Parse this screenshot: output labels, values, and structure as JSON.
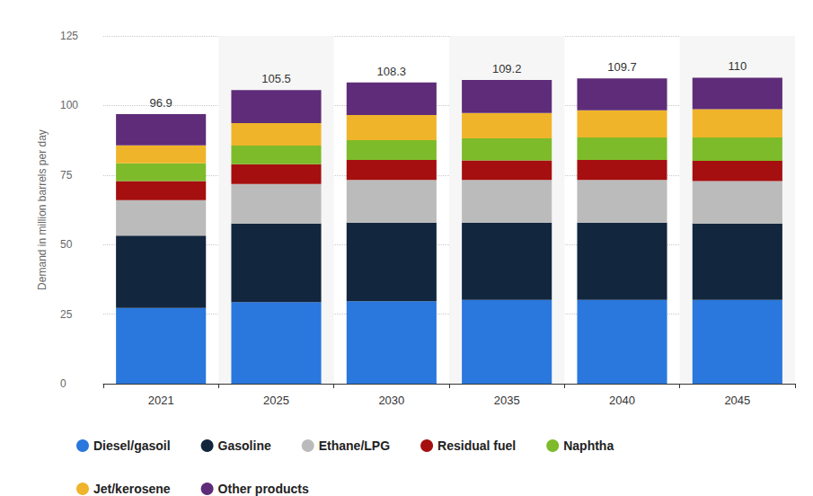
{
  "chart_data": {
    "type": "bar",
    "stacked": true,
    "grid": true,
    "legend": "bottom",
    "y_label": "Demand in million barrels per day",
    "categories": [
      "2021",
      "2025",
      "2030",
      "2035",
      "2040",
      "2045"
    ],
    "totals": [
      96.9,
      105.5,
      108.3,
      109.2,
      109.7,
      110
    ],
    "ylim": [
      0,
      125
    ],
    "yticks": [
      0,
      25,
      50,
      75,
      100,
      125
    ],
    "series": [
      {
        "name": "Diesel/gasoil",
        "color": "#2a77dd",
        "values": [
          27.2,
          29.3,
          29.6,
          30.1,
          30.1,
          30.1
        ]
      },
      {
        "name": "Gasoline",
        "color": "#12263e",
        "values": [
          26.0,
          28.3,
          28.3,
          27.8,
          27.8,
          27.5
        ]
      },
      {
        "name": "Ethane/LPG",
        "color": "#bbbbbb",
        "values": [
          12.8,
          14.2,
          15.3,
          15.3,
          15.3,
          15.2
        ]
      },
      {
        "name": "Residual fuel",
        "color": "#a50f0f",
        "values": [
          6.8,
          7.1,
          7.2,
          7.1,
          7.2,
          7.3
        ]
      },
      {
        "name": "Naphtha",
        "color": "#7dbb2a",
        "values": [
          6.4,
          6.7,
          7.1,
          7.9,
          8.1,
          8.4
        ]
      },
      {
        "name": "Jet/kerosene",
        "color": "#efb42a",
        "values": [
          6.5,
          8.1,
          9.1,
          9.1,
          9.8,
          10.2
        ]
      },
      {
        "name": "Other products",
        "color": "#5e2c78",
        "values": [
          11.2,
          11.8,
          11.7,
          11.9,
          11.4,
          11.3
        ]
      }
    ]
  }
}
